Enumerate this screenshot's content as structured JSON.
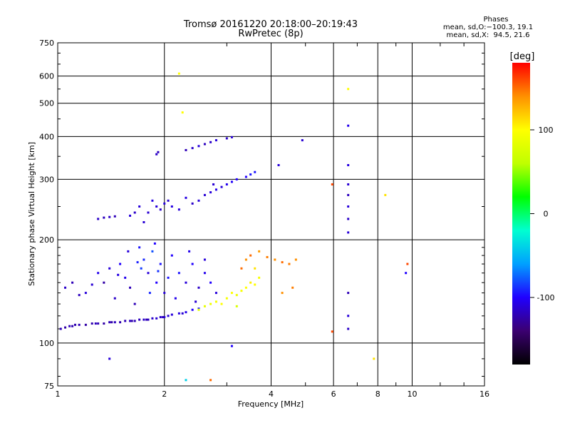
{
  "chart_data": {
    "type": "scatter",
    "title": "Tromsø 20161220 20:18:00–20:19:43",
    "subtitle": "RwPretec (8p)",
    "xlabel": "Frequency [MHz]",
    "ylabel": "Stationary phase Virtual Height [km]",
    "x_scale": "log",
    "y_scale": "log",
    "xlim": [
      1,
      16
    ],
    "ylim": [
      75,
      750
    ],
    "x_ticks": [
      1,
      2,
      4,
      6,
      8,
      10,
      16
    ],
    "x_tick_labels": [
      "1",
      "2",
      "4",
      "6",
      "8",
      "10",
      "16"
    ],
    "y_ticks": [
      75,
      100,
      200,
      300,
      400,
      500,
      600,
      750
    ],
    "y_tick_labels": [
      "75",
      "100",
      "200",
      "300",
      "400",
      "500",
      "600",
      "750"
    ],
    "grid": true,
    "phases_box": {
      "heading": "Phases",
      "line_o": "mean, sd,O:−100.3, 19.1",
      "line_x": "mean, sd,X:  94.5, 21.6"
    },
    "colorbar": {
      "label": "[deg]",
      "range": [
        -180,
        180
      ],
      "ticks": [
        100,
        0,
        -100
      ],
      "tick_labels": [
        "100",
        "0",
        "-100"
      ],
      "colors": [
        "#000000",
        "#3b0070",
        "#2000ff",
        "#00a0ff",
        "#00ffd0",
        "#00ff00",
        "#c0ff00",
        "#ffff00",
        "#ff9000",
        "#ff0000"
      ]
    },
    "series": [
      {
        "description": "low F-layer trace",
        "points": [
          [
            1.02,
            110,
            -120
          ],
          [
            1.05,
            111,
            -125
          ],
          [
            1.1,
            112,
            -122
          ],
          [
            1.15,
            113,
            -120
          ],
          [
            1.2,
            113,
            -125
          ],
          [
            1.25,
            114,
            -122
          ],
          [
            1.3,
            114,
            -120
          ],
          [
            1.35,
            114,
            -125
          ],
          [
            1.4,
            115,
            -120
          ],
          [
            1.45,
            115,
            -118
          ],
          [
            1.5,
            115,
            -122
          ],
          [
            1.55,
            116,
            -120
          ],
          [
            1.6,
            116,
            -118
          ],
          [
            1.65,
            116,
            -120
          ],
          [
            1.7,
            117,
            -118
          ],
          [
            1.75,
            117,
            -115
          ],
          [
            1.8,
            117,
            -118
          ],
          [
            1.85,
            118,
            -115
          ],
          [
            1.9,
            118,
            -112
          ],
          [
            1.95,
            119,
            -115
          ],
          [
            2.0,
            119,
            -110
          ],
          [
            2.05,
            120,
            -112
          ],
          [
            2.1,
            121,
            -110
          ],
          [
            2.2,
            122,
            -108
          ],
          [
            2.3,
            123,
            -105
          ],
          [
            2.4,
            125,
            -100
          ],
          [
            2.5,
            126,
            -95
          ],
          [
            1.08,
            112,
            -120
          ],
          [
            1.12,
            113,
            -122
          ],
          [
            1.28,
            114,
            -118
          ],
          [
            1.42,
            115,
            -124
          ],
          [
            1.62,
            116,
            -122
          ],
          [
            1.78,
            117,
            -120
          ],
          [
            1.98,
            119,
            -118
          ],
          [
            2.25,
            122,
            -112
          ]
        ]
      },
      {
        "description": "O-mode scatter 130-200 km",
        "points": [
          [
            1.05,
            145,
            -115
          ],
          [
            1.1,
            150,
            -120
          ],
          [
            1.2,
            140,
            -110
          ],
          [
            1.3,
            160,
            -105
          ],
          [
            1.35,
            150,
            -125
          ],
          [
            1.4,
            165,
            -110
          ],
          [
            1.45,
            135,
            -115
          ],
          [
            1.5,
            170,
            -100
          ],
          [
            1.55,
            155,
            -105
          ],
          [
            1.6,
            145,
            -120
          ],
          [
            1.7,
            190,
            -95
          ],
          [
            1.75,
            175,
            -90
          ],
          [
            1.8,
            160,
            -110
          ],
          [
            1.85,
            185,
            -80
          ],
          [
            1.9,
            150,
            -100
          ],
          [
            1.95,
            170,
            -95
          ],
          [
            2.0,
            140,
            -110
          ],
          [
            2.1,
            180,
            -100
          ],
          [
            2.2,
            160,
            -95
          ],
          [
            2.3,
            150,
            -110
          ],
          [
            2.4,
            170,
            -100
          ],
          [
            2.5,
            145,
            -115
          ],
          [
            2.6,
            160,
            -105
          ],
          [
            2.7,
            150,
            -100
          ],
          [
            2.8,
            140,
            -110
          ],
          [
            1.65,
            130,
            -120
          ],
          [
            1.72,
            165,
            -85
          ],
          [
            1.88,
            195,
            -100
          ],
          [
            2.05,
            155,
            -95
          ],
          [
            2.15,
            135,
            -105
          ],
          [
            1.58,
            185,
            -110
          ],
          [
            1.82,
            140,
            -90
          ],
          [
            2.35,
            185,
            -105
          ],
          [
            2.6,
            175,
            -110
          ],
          [
            1.15,
            138,
            -118
          ],
          [
            1.25,
            148,
            -112
          ],
          [
            1.48,
            158,
            -108
          ],
          [
            1.68,
            172,
            -92
          ],
          [
            1.92,
            162,
            -88
          ],
          [
            2.45,
            132,
            -112
          ]
        ]
      },
      {
        "description": "F-layer trace 230-320 km",
        "points": [
          [
            1.3,
            230,
            -115
          ],
          [
            1.35,
            232,
            -118
          ],
          [
            1.4,
            233,
            -115
          ],
          [
            1.45,
            234,
            -120
          ],
          [
            1.6,
            235,
            -110
          ],
          [
            1.65,
            240,
            -115
          ],
          [
            1.7,
            250,
            -110
          ],
          [
            1.8,
            240,
            -112
          ],
          [
            1.85,
            260,
            -108
          ],
          [
            1.9,
            250,
            -110
          ],
          [
            1.95,
            245,
            -115
          ],
          [
            2.0,
            255,
            -110
          ],
          [
            2.05,
            260,
            -112
          ],
          [
            2.1,
            250,
            -108
          ],
          [
            2.2,
            245,
            -110
          ],
          [
            2.4,
            255,
            -115
          ],
          [
            2.5,
            260,
            -110
          ],
          [
            2.6,
            270,
            -112
          ],
          [
            2.7,
            275,
            -110
          ],
          [
            2.8,
            280,
            -105
          ],
          [
            2.9,
            285,
            -110
          ],
          [
            3.0,
            290,
            -105
          ],
          [
            3.2,
            300,
            -100
          ],
          [
            3.4,
            305,
            -100
          ],
          [
            3.5,
            310,
            -95
          ],
          [
            3.6,
            315,
            -95
          ],
          [
            1.75,
            225,
            -112
          ],
          [
            2.3,
            265,
            -108
          ],
          [
            2.75,
            290,
            -112
          ],
          [
            3.1,
            295,
            -102
          ]
        ]
      },
      {
        "description": "upper echoes 340-400 km",
        "points": [
          [
            1.9,
            355,
            -115
          ],
          [
            1.92,
            360,
            -118
          ],
          [
            2.3,
            365,
            -120
          ],
          [
            2.4,
            370,
            -115
          ],
          [
            2.5,
            375,
            -110
          ],
          [
            2.6,
            380,
            -118
          ],
          [
            2.7,
            385,
            -115
          ],
          [
            2.8,
            390,
            -110
          ],
          [
            3.0,
            395,
            -115
          ],
          [
            3.1,
            398,
            -112
          ],
          [
            4.2,
            330,
            -110
          ],
          [
            4.9,
            390,
            -112
          ]
        ]
      },
      {
        "description": "X-mode trace",
        "points": [
          [
            2.5,
            125,
            80
          ],
          [
            2.6,
            128,
            85
          ],
          [
            2.7,
            130,
            90
          ],
          [
            2.8,
            132,
            95
          ],
          [
            2.9,
            130,
            100
          ],
          [
            3.0,
            135,
            95
          ],
          [
            3.1,
            140,
            100
          ],
          [
            3.2,
            138,
            90
          ],
          [
            3.3,
            142,
            95
          ],
          [
            3.4,
            145,
            100
          ],
          [
            3.5,
            150,
            105
          ],
          [
            3.6,
            148,
            100
          ],
          [
            3.7,
            155,
            95
          ],
          [
            3.4,
            175,
            140
          ],
          [
            3.5,
            180,
            150
          ],
          [
            3.7,
            185,
            135
          ],
          [
            3.9,
            178,
            145
          ],
          [
            4.1,
            175,
            140
          ],
          [
            4.3,
            172,
            150
          ],
          [
            4.5,
            170,
            145
          ],
          [
            4.7,
            175,
            140
          ],
          [
            3.3,
            165,
            150
          ],
          [
            4.3,
            140,
            140
          ],
          [
            4.6,
            145,
            145
          ],
          [
            3.2,
            128,
            75
          ],
          [
            3.6,
            165,
            110
          ]
        ]
      },
      {
        "description": "interference at 6.6 MHz",
        "points": [
          [
            6.6,
            110,
            -115
          ],
          [
            6.6,
            120,
            -110
          ],
          [
            6.6,
            140,
            -120
          ],
          [
            6.6,
            210,
            -110
          ],
          [
            6.6,
            230,
            -115
          ],
          [
            6.6,
            250,
            -110
          ],
          [
            6.6,
            270,
            -118
          ],
          [
            6.6,
            290,
            -112
          ],
          [
            6.6,
            330,
            -108
          ],
          [
            6.6,
            430,
            -105
          ],
          [
            6.6,
            550,
            100
          ]
        ]
      },
      {
        "description": "sparse outliers",
        "points": [
          [
            2.2,
            610,
            100
          ],
          [
            2.25,
            470,
            100
          ],
          [
            1.4,
            90,
            -110
          ],
          [
            2.3,
            78,
            -40
          ],
          [
            2.7,
            78,
            150
          ],
          [
            3.1,
            98,
            -100
          ],
          [
            5.95,
            290,
            160
          ],
          [
            5.95,
            108,
            160
          ],
          [
            7.8,
            90,
            110
          ],
          [
            8.4,
            270,
            110
          ],
          [
            9.7,
            170,
            160
          ],
          [
            9.6,
            160,
            -100
          ]
        ]
      }
    ]
  }
}
